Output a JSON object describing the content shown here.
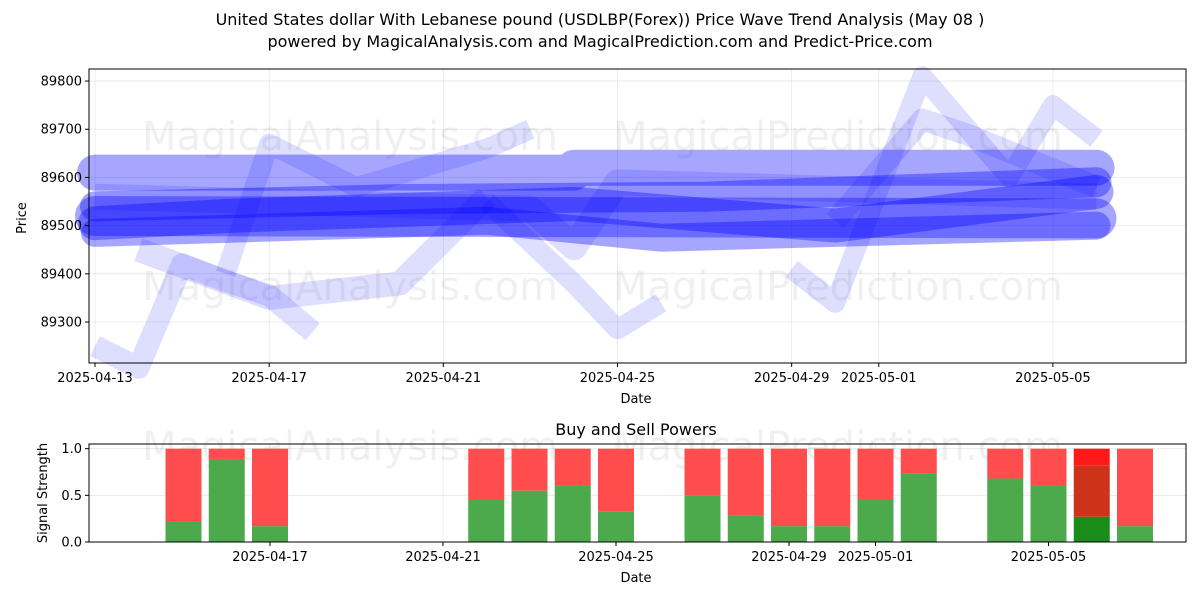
{
  "title": "United States dollar With Lebanese pound (USDLBP(Forex)) Price Wave Trend Analysis (May 08 )",
  "subtitle": "powered by MagicalAnalysis.com and MagicalPrediction.com and Predict-Price.com",
  "watermarks": [
    "MagicalAnalysis.com",
    "MagicalPrediction.com"
  ],
  "colors": {
    "wave": "#0000ff",
    "buy": "#4caa4c",
    "sell": "#ff4d4d",
    "buy_dark": "#1a8c1a",
    "sell_dark": "#cc3319",
    "sell_bright": "#ff1a1a"
  },
  "chart_data": [
    {
      "type": "line",
      "ylabel": "Price",
      "xlabel": "Date",
      "ylim": [
        89215,
        89825
      ],
      "xlim": [
        "2025-04-13",
        "2025-05-07"
      ],
      "yticks": [
        89300,
        89400,
        89500,
        89600,
        89700,
        89800
      ],
      "xticks": [
        "2025-04-13",
        "2025-04-17",
        "2025-04-21",
        "2025-04-25",
        "2025-04-29",
        "2025-05-01",
        "2025-05-05"
      ],
      "grid": true,
      "series": [
        {
          "x": [
            "2025-04-13",
            "2025-05-06"
          ],
          "y": [
            89520,
            89515
          ]
        },
        {
          "x": [
            "2025-04-13",
            "2025-04-16",
            "2025-04-24",
            "2025-04-30",
            "2025-05-06"
          ],
          "y": [
            89505,
            89520,
            89545,
            89500,
            89570
          ]
        },
        {
          "x": [
            "2025-04-13",
            "2025-04-20",
            "2025-04-27",
            "2025-05-06"
          ],
          "y": [
            89540,
            89555,
            89560,
            89590
          ]
        },
        {
          "x": [
            "2025-04-13",
            "2025-04-22",
            "2025-04-26",
            "2025-05-06"
          ],
          "y": [
            89485,
            89510,
            89475,
            89500
          ]
        },
        {
          "x": [
            "2025-04-13",
            "2025-04-24",
            "2025-04-24",
            "2025-05-06"
          ],
          "y": [
            89610,
            89610,
            89620,
            89620
          ]
        },
        {
          "x": [
            "2025-04-13",
            "2025-04-14",
            "2025-04-15",
            "2025-04-16",
            "2025-04-17",
            "2025-04-18"
          ],
          "y": [
            89250,
            89205,
            89420,
            89385,
            89355,
            89280
          ]
        },
        {
          "x": [
            "2025-04-16",
            "2025-04-17",
            "2025-04-19",
            "2025-04-22",
            "2025-04-23"
          ],
          "y": [
            89400,
            89670,
            89580,
            89660,
            89700
          ]
        },
        {
          "x": [
            "2025-04-22",
            "2025-04-24",
            "2025-04-25",
            "2025-04-26"
          ],
          "y": [
            89550,
            89380,
            89285,
            89340
          ]
        },
        {
          "x": [
            "2025-04-29",
            "2025-04-30",
            "2025-05-02",
            "2025-05-04",
            "2025-05-05",
            "2025-05-06"
          ],
          "y": [
            89410,
            89340,
            89810,
            89600,
            89750,
            89680
          ]
        },
        {
          "x": [
            "2025-04-30",
            "2025-05-02",
            "2025-05-03",
            "2025-05-06"
          ],
          "y": [
            89510,
            89720,
            89690,
            89580
          ]
        },
        {
          "x": [
            "2025-04-14",
            "2025-04-17",
            "2025-04-20",
            "2025-04-22"
          ],
          "y": [
            89450,
            89350,
            89380,
            89560
          ]
        },
        {
          "x": [
            "2025-04-13",
            "2025-04-23",
            "2025-04-24",
            "2025-04-25",
            "2025-05-06"
          ],
          "y": [
            89560,
            89535,
            89455,
            89590,
            89560
          ]
        }
      ]
    },
    {
      "type": "bar",
      "title": "Buy and Sell Powers",
      "ylabel": "Signal Strength",
      "xlabel": "Date",
      "ylim": [
        0,
        1.05
      ],
      "yticks": [
        0.0,
        0.5,
        1.0
      ],
      "xticks": [
        "2025-04-17",
        "2025-04-21",
        "2025-04-25",
        "2025-04-29",
        "2025-05-01",
        "2025-05-05"
      ],
      "categories": [
        "2025-04-15",
        "2025-04-16",
        "2025-04-17",
        "2025-04-22",
        "2025-04-23",
        "2025-04-24",
        "2025-04-25",
        "2025-04-27",
        "2025-04-28",
        "2025-04-29",
        "2025-04-30",
        "2025-05-01",
        "2025-05-02",
        "2025-05-04",
        "2025-05-05",
        "2025-05-06",
        "2025-05-07"
      ],
      "series": [
        {
          "values": [
            0.22,
            0.89,
            0.17,
            0.45,
            0.55,
            0.61,
            0.33,
            0.5,
            0.28,
            0.17,
            0.17,
            0.45,
            0.73,
            0.68,
            0.61,
            0.27,
            0.17
          ]
        },
        {
          "values": [
            0.78,
            0.11,
            0.83,
            0.55,
            0.45,
            0.39,
            0.67,
            0.5,
            0.72,
            0.83,
            0.83,
            0.55,
            0.27,
            0.32,
            0.39,
            0.73,
            0.83
          ]
        }
      ]
    }
  ]
}
